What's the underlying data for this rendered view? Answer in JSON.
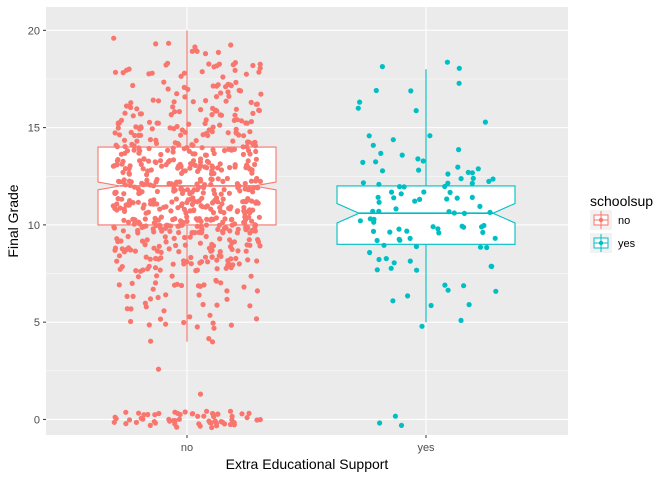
{
  "chart_data": {
    "type": "boxplot",
    "geoms": [
      "notched-box",
      "jittered-points"
    ],
    "xlabel": "Extra Educational Support",
    "ylabel": "Final Grade",
    "categories": [
      "no",
      "yes"
    ],
    "ylim": [
      -0.8,
      21.2
    ],
    "yticks": [
      0,
      5,
      10,
      15,
      20
    ],
    "grid": true,
    "legend": {
      "title": "schoolsup",
      "position": "right",
      "entries": [
        "no",
        "yes"
      ]
    },
    "colors": {
      "no": "#F8766D",
      "yes": "#00BFC4",
      "panel": "#EBEBEB",
      "grid": "#FFFFFF"
    },
    "boxes": [
      {
        "category": "no",
        "q1": 10,
        "median": 12,
        "q3": 14,
        "notch_low": 11.8,
        "notch_high": 12.2,
        "whisker_low": 4,
        "whisker_high": 20
      },
      {
        "category": "yes",
        "q1": 9,
        "median": 10.6,
        "q3": 12,
        "notch_low": 10.1,
        "notch_high": 11.1,
        "whisker_low": 5,
        "whisker_high": 18
      }
    ],
    "points_summary": {
      "no": {
        "approx_count": 790,
        "range": [
          0,
          20.4
        ]
      },
      "yes": {
        "approx_count": 110,
        "range": [
          -0.3,
          18
        ]
      }
    }
  }
}
